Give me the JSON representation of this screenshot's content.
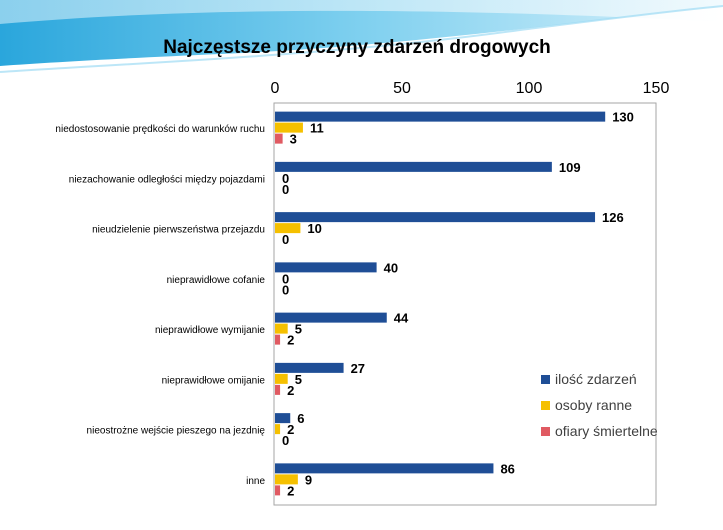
{
  "chart_data": {
    "type": "bar",
    "orientation": "horizontal",
    "title": "Najczęstsze przyczyny zdarzeń drogowych",
    "xlabel": "",
    "ylabel": "",
    "xlim": [
      0,
      150
    ],
    "x_ticks": [
      0,
      50,
      100,
      150
    ],
    "x_tick_labels": [
      "0",
      "50",
      "100",
      "150"
    ],
    "x_axis_position": "top",
    "grid": false,
    "legend_position": "right",
    "categories": [
      "niedostosowanie prędkości do warunków ruchu",
      "niezachowanie odległości między pojazdami",
      "nieudzielenie pierwszeństwa przejazdu",
      "nieprawidłowe cofanie",
      "nieprawidłowe wymijanie",
      "nieprawidłowe omijanie",
      "nieostrożne wejście pieszego na jezdnię",
      "inne"
    ],
    "series": [
      {
        "name": "ilość zdarzeń",
        "color": "#1f4e96",
        "values": [
          130,
          109,
          126,
          40,
          44,
          27,
          6,
          86
        ]
      },
      {
        "name": "osoby ranne",
        "color": "#f5c000",
        "values": [
          11,
          0,
          10,
          0,
          5,
          5,
          2,
          9
        ]
      },
      {
        "name": "ofiary śmiertelne",
        "color": "#e05a62",
        "values": [
          3,
          0,
          0,
          0,
          2,
          2,
          0,
          2
        ]
      }
    ]
  }
}
